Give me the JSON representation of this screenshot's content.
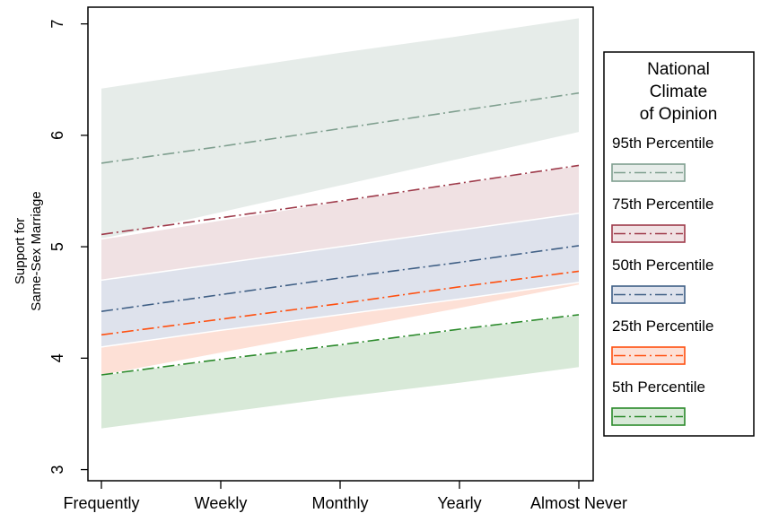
{
  "chart_data": {
    "type": "area",
    "title": "",
    "xlabel": "",
    "ylabel": "Support for Same-Sex Marriage",
    "ylabel_lines": [
      "Support for",
      "Same-Sex Marriage"
    ],
    "ylim": [
      2.9,
      7.15
    ],
    "yticks": [
      3,
      4,
      5,
      6,
      7
    ],
    "categories": [
      "Frequently",
      "Weekly",
      "Monthly",
      "Yearly",
      "Almost Never"
    ],
    "grid": false,
    "legend": {
      "placement": "right",
      "title_lines": [
        "National",
        "Climate",
        "of Opinion"
      ]
    },
    "series": [
      {
        "name": "95th Percentile",
        "line_color": "#7f9f8f",
        "fill_color": "#e6ece9",
        "line": [
          5.75,
          5.9,
          6.06,
          6.22,
          6.38
        ],
        "lower": [
          5.07,
          5.31,
          5.55,
          5.79,
          6.03
        ],
        "upper": [
          6.42,
          6.58,
          6.74,
          6.89,
          7.05
        ]
      },
      {
        "name": "75th Percentile",
        "line_color": "#9e3a4a",
        "fill_color": "#f0e1e3",
        "line": [
          5.11,
          5.26,
          5.41,
          5.57,
          5.73
        ],
        "lower": [
          4.7,
          4.85,
          5.0,
          5.15,
          5.3
        ],
        "upper": [
          5.07,
          5.24,
          5.41,
          5.57,
          5.73
        ]
      },
      {
        "name": "50th Percentile",
        "line_color": "#3f5f85",
        "fill_color": "#dee2ec",
        "line": [
          4.42,
          4.57,
          4.72,
          4.86,
          5.01
        ],
        "lower": [
          4.1,
          4.25,
          4.39,
          4.53,
          4.68
        ],
        "upper": [
          4.7,
          4.85,
          5.0,
          5.15,
          5.3
        ]
      },
      {
        "name": "25th Percentile",
        "line_color": "#ff4f0f",
        "fill_color": "#fde0d6",
        "line": [
          4.21,
          4.35,
          4.49,
          4.64,
          4.78
        ],
        "lower": [
          3.85,
          4.05,
          4.25,
          4.45,
          4.66
        ],
        "upper": [
          4.1,
          4.25,
          4.39,
          4.53,
          4.68
        ]
      },
      {
        "name": "5th  Percentile",
        "line_color": "#2b8a2b",
        "fill_color": "#d8e9d8",
        "line": [
          3.85,
          3.99,
          4.12,
          4.26,
          4.39
        ],
        "lower": [
          3.37,
          3.51,
          3.65,
          3.78,
          3.92
        ],
        "upper": [
          3.85,
          3.99,
          4.12,
          4.26,
          4.39
        ]
      }
    ]
  }
}
